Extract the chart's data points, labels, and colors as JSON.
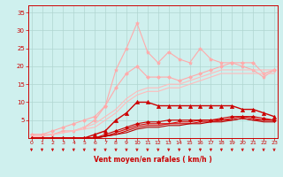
{
  "x": [
    0,
    1,
    2,
    3,
    4,
    5,
    6,
    7,
    8,
    9,
    10,
    11,
    12,
    13,
    14,
    15,
    16,
    17,
    18,
    19,
    20,
    21,
    22,
    23
  ],
  "series": [
    {
      "y": [
        1,
        1,
        1,
        2,
        2,
        3,
        5,
        9,
        19,
        25,
        32,
        24,
        21,
        24,
        22,
        21,
        25,
        22,
        21,
        21,
        20,
        19,
        17,
        19
      ],
      "color": "#ffaaaa",
      "lw": 0.8,
      "marker": "*",
      "ms": 3,
      "zorder": 2
    },
    {
      "y": [
        1,
        1,
        2,
        3,
        4,
        5,
        6,
        9,
        14,
        18,
        20,
        17,
        17,
        17,
        16,
        17,
        18,
        19,
        20,
        21,
        21,
        21,
        18,
        19
      ],
      "color": "#ffaaaa",
      "lw": 0.8,
      "marker": "D",
      "ms": 2,
      "zorder": 2
    },
    {
      "y": [
        0.5,
        0.5,
        1,
        1.5,
        2,
        3,
        4,
        6,
        8,
        11,
        13,
        14,
        14,
        15,
        15,
        16,
        17,
        18,
        19,
        19,
        19,
        19,
        19,
        19
      ],
      "color": "#ffbbbb",
      "lw": 0.8,
      "marker": null,
      "ms": 0,
      "zorder": 2
    },
    {
      "y": [
        0.5,
        0.5,
        1,
        1.5,
        2,
        2.5,
        3,
        5,
        7,
        10,
        12,
        13,
        13,
        14,
        14,
        15,
        16,
        17,
        18,
        18,
        18,
        18,
        18,
        18
      ],
      "color": "#ffbbbb",
      "lw": 0.8,
      "marker": null,
      "ms": 0,
      "zorder": 2
    },
    {
      "y": [
        0,
        0,
        0,
        0,
        0,
        0,
        1,
        2,
        5,
        7,
        10,
        10,
        9,
        9,
        9,
        9,
        9,
        9,
        9,
        9,
        8,
        8,
        7,
        6
      ],
      "color": "#cc0000",
      "lw": 1.0,
      "marker": "^",
      "ms": 3,
      "zorder": 5
    },
    {
      "y": [
        0,
        0,
        0,
        0,
        0,
        0,
        0,
        1,
        2,
        3,
        4,
        4.5,
        4.5,
        5,
        5,
        5,
        5,
        5,
        5.5,
        6,
        6,
        6,
        5.5,
        5
      ],
      "color": "#cc0000",
      "lw": 0.8,
      "marker": "D",
      "ms": 2,
      "zorder": 4
    },
    {
      "y": [
        0,
        0,
        0,
        0,
        0,
        0,
        0,
        0.5,
        1.5,
        2.5,
        3.5,
        4,
        4,
        4,
        4.5,
        4.5,
        5,
        5,
        5,
        5.5,
        6,
        5.5,
        5,
        5
      ],
      "color": "#dd0000",
      "lw": 0.8,
      "marker": null,
      "ms": 0,
      "zorder": 3
    },
    {
      "y": [
        0,
        0,
        0,
        0,
        0,
        0,
        0,
        0.5,
        1,
        2,
        3,
        3.5,
        3.5,
        4,
        4,
        4,
        4.5,
        4.5,
        5,
        5,
        5.5,
        5,
        5,
        5
      ],
      "color": "#dd0000",
      "lw": 0.8,
      "marker": null,
      "ms": 0,
      "zorder": 3
    },
    {
      "y": [
        0,
        0,
        0,
        0,
        0,
        0,
        0,
        0.5,
        1,
        1.5,
        2.5,
        3,
        3,
        3.5,
        3.5,
        4,
        4,
        4.5,
        4.5,
        5,
        5.5,
        5,
        4.5,
        4.5
      ],
      "color": "#bb0000",
      "lw": 0.8,
      "marker": null,
      "ms": 0,
      "zorder": 3
    }
  ],
  "xlim": [
    -0.3,
    23.3
  ],
  "ylim": [
    0,
    37
  ],
  "yticks": [
    5,
    10,
    15,
    20,
    25,
    30,
    35
  ],
  "xticks": [
    0,
    1,
    2,
    3,
    4,
    5,
    6,
    7,
    8,
    9,
    10,
    11,
    12,
    13,
    14,
    15,
    16,
    17,
    18,
    19,
    20,
    21,
    22,
    23
  ],
  "xlabel": "Vent moyen/en rafales ( km/h )",
  "bg_color": "#cff0ee",
  "grid_color": "#b0d5d0",
  "tick_color": "#cc0000",
  "label_color": "#cc0000"
}
